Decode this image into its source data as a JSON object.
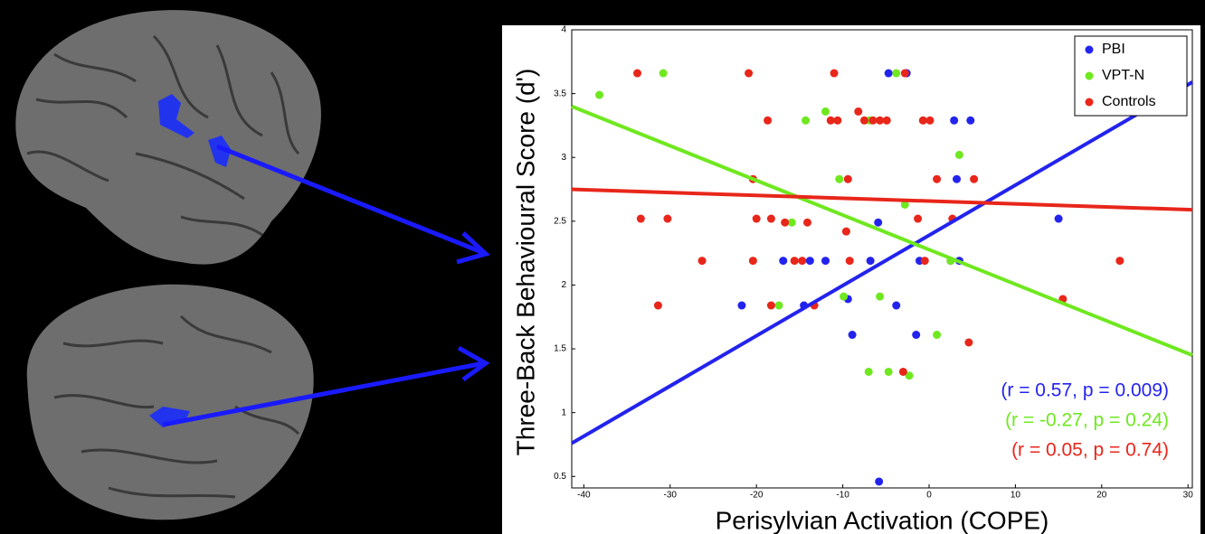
{
  "chart_data": {
    "type": "scatter",
    "x_label": "Perisylvian Activation (COPE)",
    "y_label": "Three-Back Behavioural Score (d')",
    "xlim": [
      -41.4,
      30.5
    ],
    "ylim": [
      0.41,
      4
    ],
    "xticks": [
      -40,
      -30,
      -20,
      -10,
      0,
      10,
      20,
      30
    ],
    "yticks": [
      0.5,
      1,
      1.5,
      2,
      2.5,
      3,
      3.5,
      4
    ],
    "legend": "top-right",
    "series": [
      {
        "name": "PBI",
        "color": "#2323ee",
        "x": [
          -4.7,
          -2.6,
          2.9,
          4.8,
          3.2,
          -5.9,
          15.0,
          -16.9,
          -13.8,
          -12.0,
          -6.8,
          -1.1,
          2.5,
          3.5,
          -21.7,
          -14.5,
          -9.4,
          -3.8,
          -8.9,
          -1.5,
          -5.8
        ],
        "values": [
          3.66,
          3.66,
          3.29,
          3.29,
          2.83,
          2.49,
          2.52,
          2.19,
          2.19,
          2.19,
          2.19,
          2.19,
          2.19,
          2.19,
          1.84,
          1.84,
          1.89,
          1.84,
          1.61,
          1.61,
          0.46
        ],
        "fit": [
          0.76,
          3.59
        ]
      },
      {
        "name": "VPT-N",
        "color": "#6fe81f",
        "x": [
          -38.2,
          -30.8,
          -14.3,
          -12.0,
          -3.8,
          -6.9,
          3.5,
          -10.4,
          -15.9,
          -2.8,
          2.5,
          -17.4,
          -9.9,
          -5.7,
          0.9,
          -7.0,
          -4.7,
          -2.3
        ],
        "values": [
          3.49,
          3.66,
          3.29,
          3.36,
          3.66,
          3.29,
          3.02,
          2.83,
          2.49,
          2.63,
          2.19,
          1.84,
          1.91,
          1.91,
          1.61,
          1.32,
          1.32,
          1.29
        ],
        "fit": [
          3.4,
          1.45
        ]
      },
      {
        "name": "Controls",
        "color": "#e8261a",
        "x": [
          -33.8,
          -20.9,
          -11.0,
          -2.8,
          -18.7,
          -11.4,
          -10.6,
          -8.2,
          -7.5,
          -6.5,
          -5.7,
          -4.9,
          -0.7,
          0.1,
          -20.4,
          -9.4,
          0.9,
          5.2,
          -33.4,
          -30.3,
          -20.0,
          -18.3,
          -16.7,
          -14.1,
          -9.6,
          -1.3,
          2.7,
          -26.3,
          -20.4,
          -15.6,
          -14.7,
          -9.2,
          -0.5,
          22.1,
          -31.4,
          -18.3,
          -13.3,
          15.5,
          4.6,
          -3.0
        ],
        "values": [
          3.66,
          3.66,
          3.66,
          3.66,
          3.29,
          3.29,
          3.29,
          3.36,
          3.29,
          3.29,
          3.29,
          3.29,
          3.29,
          3.29,
          2.83,
          2.83,
          2.83,
          2.83,
          2.52,
          2.52,
          2.52,
          2.52,
          2.49,
          2.49,
          2.42,
          2.52,
          2.52,
          2.19,
          2.19,
          2.19,
          2.19,
          2.19,
          2.19,
          2.19,
          1.84,
          1.84,
          1.84,
          1.89,
          1.55,
          1.32
        ],
        "fit": [
          2.75,
          2.59
        ]
      }
    ],
    "annotations": [
      "(r = 0.57, p = 0.009)",
      "(r = -0.27, p = 0.24)",
      "(r = 0.05, p = 0.74)"
    ]
  }
}
